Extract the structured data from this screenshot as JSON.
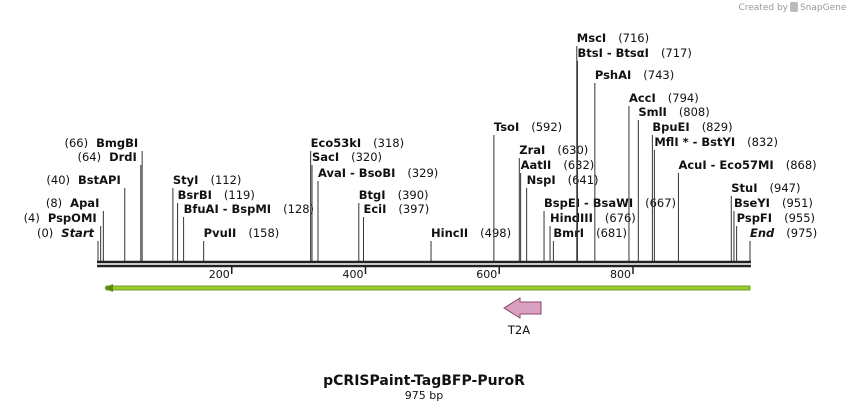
{
  "credit": "Created by",
  "brand": "SnapGene",
  "title": "pCRISPaint-TagBFP-PuroR",
  "length": 975,
  "length_label": "975 bp",
  "ticks": [
    200,
    400,
    600,
    800
  ],
  "feature": {
    "name": "T2A"
  },
  "enzymes": [
    {
      "name": "Start",
      "pos": 0,
      "pos_label": "(0)",
      "side": "left",
      "style": "italic"
    },
    {
      "name": "PspOMI",
      "pos": 4,
      "pos_label": "(4)",
      "side": "left"
    },
    {
      "name": "ApaI",
      "pos": 8,
      "pos_label": "(8)",
      "side": "left"
    },
    {
      "name": "BstAPI",
      "pos": 40,
      "pos_label": "(40)",
      "side": "left"
    },
    {
      "name": "DrdI",
      "pos": 64,
      "pos_label": "(64)",
      "side": "left"
    },
    {
      "name": "BmgBI",
      "pos": 66,
      "pos_label": "(66)",
      "side": "left"
    },
    {
      "name": "StyI",
      "pos": 112,
      "pos_label": "(112)",
      "side": "right"
    },
    {
      "name": "BsrBI",
      "pos": 119,
      "pos_label": "(119)",
      "side": "right"
    },
    {
      "name": "BfuAI  -  BspMI",
      "pos": 128,
      "pos_label": "(128)",
      "side": "right"
    },
    {
      "name": "PvuII",
      "pos": 158,
      "pos_label": "(158)",
      "side": "right"
    },
    {
      "name": "Eco53kI",
      "pos": 318,
      "pos_label": "(318)",
      "side": "right"
    },
    {
      "name": "SacI",
      "pos": 320,
      "pos_label": "(320)",
      "side": "right"
    },
    {
      "name": "AvaI  -  BsoBI",
      "pos": 329,
      "pos_label": "(329)",
      "side": "right"
    },
    {
      "name": "BtgI",
      "pos": 390,
      "pos_label": "(390)",
      "side": "right"
    },
    {
      "name": "EciI",
      "pos": 397,
      "pos_label": "(397)",
      "side": "right"
    },
    {
      "name": "HincII",
      "pos": 498,
      "pos_label": "(498)",
      "side": "right"
    },
    {
      "name": "TsoI",
      "pos": 592,
      "pos_label": "(592)",
      "side": "right"
    },
    {
      "name": "ZraI",
      "pos": 630,
      "pos_label": "(630)",
      "side": "right"
    },
    {
      "name": "AatII",
      "pos": 632,
      "pos_label": "(632)",
      "side": "right"
    },
    {
      "name": "NspI",
      "pos": 641,
      "pos_label": "(641)",
      "side": "right"
    },
    {
      "name": "BspEI  -  BsaWI",
      "pos": 667,
      "pos_label": "(667)",
      "side": "right"
    },
    {
      "name": "HindIII",
      "pos": 676,
      "pos_label": "(676)",
      "side": "right"
    },
    {
      "name": "BmrI",
      "pos": 681,
      "pos_label": "(681)",
      "side": "right"
    },
    {
      "name": "MscI",
      "pos": 716,
      "pos_label": "(716)",
      "side": "right"
    },
    {
      "name": "BtsI  -  BtsαI",
      "pos": 717,
      "pos_label": "(717)",
      "side": "right"
    },
    {
      "name": "PshAI",
      "pos": 743,
      "pos_label": "(743)",
      "side": "right"
    },
    {
      "name": "AccI",
      "pos": 794,
      "pos_label": "(794)",
      "side": "right"
    },
    {
      "name": "SmlI",
      "pos": 808,
      "pos_label": "(808)",
      "side": "right"
    },
    {
      "name": "BpuEI",
      "pos": 829,
      "pos_label": "(829)",
      "side": "right"
    },
    {
      "name": "MflI *  -  BstYI",
      "pos": 832,
      "pos_label": "(832)",
      "side": "right"
    },
    {
      "name": "AcuI  -  Eco57MI",
      "pos": 868,
      "pos_label": "(868)",
      "side": "right"
    },
    {
      "name": "StuI",
      "pos": 947,
      "pos_label": "(947)",
      "side": "right"
    },
    {
      "name": "BseYI",
      "pos": 951,
      "pos_label": "(951)",
      "side": "right"
    },
    {
      "name": "PspFI",
      "pos": 955,
      "pos_label": "(955)",
      "side": "right"
    },
    {
      "name": "End",
      "pos": 975,
      "pos_label": "(975)",
      "side": "right",
      "style": "italic"
    }
  ]
}
